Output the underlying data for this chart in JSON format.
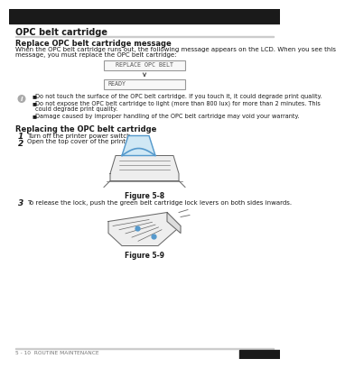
{
  "bg_color": "#ffffff",
  "top_bar_color": "#1a1a1a",
  "title": "OPC belt cartridge",
  "section1_title": "Replace OPC belt cartridge message",
  "section1_body_line1": "When the OPC belt cartridge runs out, the following message appears on the LCD. When you see this",
  "section1_body_line2": "message, you must replace the OPC belt cartridge:",
  "lcd_box1_text": "REPLACE OPC BELT",
  "lcd_box2_text": "READY",
  "note_bullets": [
    "Do not touch the surface of the OPC belt cartridge. If you touch it, it could degrade print quality.",
    "Do not expose the OPC belt cartridge to light (more than 800 lux) for more than 2 minutes. This could degrade print quality.",
    "Damage caused by improper handling of the OPC belt cartridge may void your warranty."
  ],
  "section2_title": "Replacing the OPC belt cartridge",
  "step1": "Turn off the printer power switch.",
  "step2": "Open the top cover of the printer.",
  "figure1_caption": "Figure 5-8",
  "step3_text": "To release the lock, push the green belt cartridge lock levers on both sides inwards.",
  "figure2_caption": "Figure 5-9",
  "footer_text": "5 - 10  ROUTINE MAINTENANCE",
  "text_color": "#1a1a1a",
  "gray_text": "#444444",
  "lcd_border_color": "#999999",
  "lcd_fill_color": "#f8f8f8",
  "line_color": "#cccccc",
  "note_icon_color": "#aaaaaa",
  "blue_color": "#5599cc",
  "sketch_color": "#666666",
  "sketch_fill": "#eeeeee"
}
